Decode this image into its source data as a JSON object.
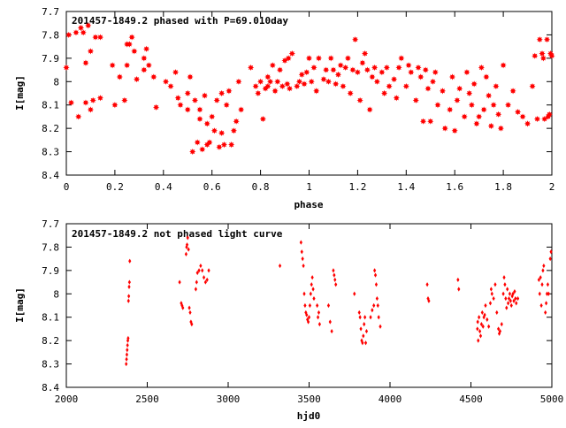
{
  "colors": {
    "points": "#ff0000",
    "axes": "#000000",
    "background": "#ffffff"
  },
  "chart_data": [
    {
      "type": "scatter",
      "title": "201457-1849.2 phased with P=69.010day",
      "xlabel": "phase",
      "ylabel": "I[mag]",
      "xlim": [
        0,
        2
      ],
      "ylim": [
        7.7,
        8.4
      ],
      "y_inverted": true,
      "grid": false,
      "legend": "none",
      "marker": "filled-star",
      "xticks": [
        "0",
        "0.2",
        "0.4",
        "0.6",
        "0.8",
        "1",
        "1.2",
        "1.4",
        "1.6",
        "1.8",
        "2"
      ],
      "yticks": [
        "7.7",
        "7.8",
        "7.9",
        "8",
        "8.1",
        "8.2",
        "8.3",
        "8.4"
      ],
      "points": [
        [
          0.0,
          7.94
        ],
        [
          0.01,
          7.8
        ],
        [
          0.02,
          8.09
        ],
        [
          0.04,
          7.79
        ],
        [
          0.05,
          8.15
        ],
        [
          0.06,
          7.77
        ],
        [
          0.07,
          7.79
        ],
        [
          0.08,
          7.92
        ],
        [
          0.08,
          8.09
        ],
        [
          0.09,
          7.76
        ],
        [
          0.1,
          7.87
        ],
        [
          0.1,
          8.12
        ],
        [
          0.11,
          8.08
        ],
        [
          0.12,
          7.81
        ],
        [
          0.14,
          7.81
        ],
        [
          0.14,
          8.07
        ],
        [
          0.19,
          7.93
        ],
        [
          0.2,
          8.1
        ],
        [
          0.22,
          7.98
        ],
        [
          0.24,
          8.08
        ],
        [
          0.25,
          7.84
        ],
        [
          0.25,
          7.93
        ],
        [
          0.26,
          7.84
        ],
        [
          0.27,
          7.81
        ],
        [
          0.28,
          7.87
        ],
        [
          0.29,
          7.99
        ],
        [
          0.32,
          7.95
        ],
        [
          0.32,
          7.9
        ],
        [
          0.33,
          7.86
        ],
        [
          0.34,
          7.93
        ],
        [
          0.36,
          7.98
        ],
        [
          0.37,
          8.11
        ],
        [
          0.41,
          8.0
        ],
        [
          0.43,
          8.02
        ],
        [
          0.45,
          7.96
        ],
        [
          0.46,
          8.07
        ],
        [
          0.47,
          8.1
        ],
        [
          0.5,
          8.05
        ],
        [
          0.5,
          8.12
        ],
        [
          0.51,
          7.98
        ],
        [
          0.52,
          8.3
        ],
        [
          0.53,
          8.08
        ],
        [
          0.54,
          8.26
        ],
        [
          0.55,
          8.12
        ],
        [
          0.55,
          8.16
        ],
        [
          0.56,
          8.29
        ],
        [
          0.57,
          8.06
        ],
        [
          0.58,
          8.27
        ],
        [
          0.58,
          8.18
        ],
        [
          0.59,
          8.26
        ],
        [
          0.6,
          8.15
        ],
        [
          0.61,
          8.21
        ],
        [
          0.62,
          8.08
        ],
        [
          0.63,
          8.28
        ],
        [
          0.64,
          8.05
        ],
        [
          0.64,
          8.22
        ],
        [
          0.65,
          8.27
        ],
        [
          0.66,
          8.1
        ],
        [
          0.67,
          8.04
        ],
        [
          0.68,
          8.27
        ],
        [
          0.69,
          8.21
        ],
        [
          0.7,
          8.17
        ],
        [
          0.71,
          8.0
        ],
        [
          0.72,
          8.12
        ],
        [
          0.76,
          7.94
        ],
        [
          0.78,
          8.02
        ],
        [
          0.79,
          8.05
        ],
        [
          0.8,
          8.0
        ],
        [
          0.81,
          8.16
        ],
        [
          0.82,
          8.03
        ],
        [
          0.83,
          7.98
        ],
        [
          0.83,
          8.02
        ],
        [
          0.84,
          8.0
        ],
        [
          0.85,
          7.93
        ],
        [
          0.86,
          8.04
        ],
        [
          0.87,
          8.0
        ],
        [
          0.88,
          7.95
        ],
        [
          0.89,
          8.02
        ],
        [
          0.9,
          7.91
        ],
        [
          0.91,
          8.01
        ],
        [
          0.92,
          8.03
        ],
        [
          0.93,
          7.88
        ],
        [
          0.95,
          8.02
        ],
        [
          0.96,
          8.0
        ],
        [
          0.97,
          7.97
        ],
        [
          0.98,
          8.01
        ],
        [
          0.99,
          7.96
        ],
        [
          1.0,
          7.9
        ],
        [
          1.01,
          8.0
        ],
        [
          1.02,
          7.94
        ],
        [
          1.03,
          8.04
        ],
        [
          1.04,
          7.9
        ],
        [
          1.06,
          7.99
        ],
        [
          1.07,
          7.95
        ],
        [
          1.08,
          8.0
        ],
        [
          1.09,
          7.9
        ],
        [
          1.1,
          7.95
        ],
        [
          1.11,
          8.01
        ],
        [
          1.12,
          7.97
        ],
        [
          1.13,
          7.93
        ],
        [
          1.14,
          8.02
        ],
        [
          1.15,
          7.94
        ],
        [
          1.16,
          7.9
        ],
        [
          1.17,
          8.05
        ],
        [
          1.18,
          7.95
        ],
        [
          1.19,
          7.82
        ],
        [
          1.2,
          7.96
        ],
        [
          1.21,
          8.08
        ],
        [
          1.22,
          7.92
        ],
        [
          1.23,
          7.88
        ],
        [
          1.24,
          7.95
        ],
        [
          1.25,
          8.12
        ],
        [
          1.26,
          7.98
        ],
        [
          1.27,
          7.94
        ],
        [
          1.28,
          8.0
        ],
        [
          1.3,
          7.96
        ],
        [
          1.31,
          8.05
        ],
        [
          1.32,
          7.94
        ],
        [
          1.33,
          8.02
        ],
        [
          1.35,
          7.99
        ],
        [
          1.36,
          8.07
        ],
        [
          1.37,
          7.94
        ],
        [
          1.38,
          7.9
        ],
        [
          1.4,
          8.02
        ],
        [
          1.41,
          7.93
        ],
        [
          1.42,
          7.96
        ],
        [
          1.44,
          8.08
        ],
        [
          1.45,
          7.94
        ],
        [
          1.46,
          7.98
        ],
        [
          1.47,
          8.17
        ],
        [
          1.48,
          7.95
        ],
        [
          1.49,
          8.03
        ],
        [
          1.5,
          8.17
        ],
        [
          1.51,
          8.0
        ],
        [
          1.52,
          7.96
        ],
        [
          1.53,
          8.1
        ],
        [
          1.55,
          8.04
        ],
        [
          1.56,
          8.2
        ],
        [
          1.58,
          8.12
        ],
        [
          1.59,
          7.98
        ],
        [
          1.6,
          8.21
        ],
        [
          1.61,
          8.08
        ],
        [
          1.62,
          8.03
        ],
        [
          1.64,
          8.15
        ],
        [
          1.65,
          7.96
        ],
        [
          1.66,
          8.05
        ],
        [
          1.67,
          8.1
        ],
        [
          1.68,
          8.01
        ],
        [
          1.69,
          8.18
        ],
        [
          1.7,
          8.15
        ],
        [
          1.71,
          7.94
        ],
        [
          1.72,
          8.12
        ],
        [
          1.73,
          7.98
        ],
        [
          1.74,
          8.06
        ],
        [
          1.75,
          8.19
        ],
        [
          1.76,
          8.1
        ],
        [
          1.77,
          8.02
        ],
        [
          1.78,
          8.14
        ],
        [
          1.79,
          8.2
        ],
        [
          1.8,
          7.93
        ],
        [
          1.82,
          8.1
        ],
        [
          1.84,
          8.04
        ],
        [
          1.86,
          8.13
        ],
        [
          1.88,
          8.15
        ],
        [
          1.9,
          8.18
        ],
        [
          1.92,
          8.02
        ],
        [
          1.93,
          7.89
        ],
        [
          1.94,
          8.16
        ],
        [
          1.95,
          7.82
        ],
        [
          1.96,
          7.88
        ],
        [
          1.97,
          8.16
        ],
        [
          1.98,
          7.82
        ],
        [
          1.99,
          8.14
        ],
        [
          2.0,
          7.89
        ],
        [
          1.965,
          7.9
        ],
        [
          1.985,
          8.15
        ],
        [
          1.995,
          7.88
        ],
        [
          0.915,
          7.9
        ]
      ]
    },
    {
      "type": "scatter",
      "title": "201457-1849.2 not phased light curve",
      "xlabel": "hjd0",
      "ylabel": "I[mag]",
      "xlim": [
        2000,
        5000
      ],
      "ylim": [
        7.7,
        8.4
      ],
      "y_inverted": true,
      "grid": false,
      "legend": "none",
      "marker": "small-diamond",
      "xticks": [
        "2000",
        "2500",
        "3000",
        "3500",
        "4000",
        "4500",
        "5000"
      ],
      "yticks": [
        "7.7",
        "7.8",
        "7.9",
        "8",
        "8.1",
        "8.2",
        "8.3",
        "8.4"
      ],
      "points": [
        [
          2370,
          8.3
        ],
        [
          2372,
          8.28
        ],
        [
          2374,
          8.26
        ],
        [
          2376,
          8.24
        ],
        [
          2378,
          8.22
        ],
        [
          2380,
          8.2
        ],
        [
          2382,
          8.19
        ],
        [
          2384,
          8.03
        ],
        [
          2386,
          8.01
        ],
        [
          2388,
          7.97
        ],
        [
          2390,
          7.95
        ],
        [
          2392,
          7.86
        ],
        [
          2700,
          7.95
        ],
        [
          2710,
          8.04
        ],
        [
          2715,
          8.05
        ],
        [
          2720,
          8.06
        ],
        [
          2740,
          7.83
        ],
        [
          2743,
          7.8
        ],
        [
          2746,
          7.79
        ],
        [
          2750,
          7.76
        ],
        [
          2755,
          7.81
        ],
        [
          2760,
          8.06
        ],
        [
          2765,
          8.08
        ],
        [
          2770,
          8.12
        ],
        [
          2775,
          8.13
        ],
        [
          2800,
          7.98
        ],
        [
          2805,
          7.95
        ],
        [
          2810,
          7.91
        ],
        [
          2820,
          7.9
        ],
        [
          2830,
          7.88
        ],
        [
          2840,
          7.9
        ],
        [
          2850,
          7.93
        ],
        [
          2860,
          7.95
        ],
        [
          2870,
          7.94
        ],
        [
          2880,
          7.9
        ],
        [
          3320,
          7.88
        ],
        [
          3450,
          7.78
        ],
        [
          3455,
          7.82
        ],
        [
          3460,
          7.85
        ],
        [
          3465,
          7.88
        ],
        [
          3470,
          8.0
        ],
        [
          3475,
          8.05
        ],
        [
          3480,
          8.08
        ],
        [
          3485,
          8.09
        ],
        [
          3490,
          8.11
        ],
        [
          3495,
          8.12
        ],
        [
          3500,
          8.1
        ],
        [
          3505,
          8.05
        ],
        [
          3510,
          8.0
        ],
        [
          3515,
          7.96
        ],
        [
          3520,
          7.93
        ],
        [
          3525,
          7.98
        ],
        [
          3530,
          8.02
        ],
        [
          3550,
          8.05
        ],
        [
          3555,
          8.1
        ],
        [
          3560,
          8.08
        ],
        [
          3565,
          8.13
        ],
        [
          3620,
          8.05
        ],
        [
          3630,
          8.12
        ],
        [
          3640,
          8.16
        ],
        [
          3650,
          7.9
        ],
        [
          3655,
          7.92
        ],
        [
          3660,
          7.94
        ],
        [
          3665,
          7.96
        ],
        [
          3780,
          8.0
        ],
        [
          3810,
          8.08
        ],
        [
          3815,
          8.1
        ],
        [
          3820,
          8.15
        ],
        [
          3825,
          8.2
        ],
        [
          3830,
          8.21
        ],
        [
          3835,
          8.18
        ],
        [
          3840,
          8.13
        ],
        [
          3845,
          8.1
        ],
        [
          3850,
          8.21
        ],
        [
          3855,
          8.16
        ],
        [
          3880,
          8.1
        ],
        [
          3890,
          8.07
        ],
        [
          3900,
          8.05
        ],
        [
          3905,
          7.9
        ],
        [
          3910,
          7.92
        ],
        [
          3915,
          7.96
        ],
        [
          3920,
          8.02
        ],
        [
          3925,
          8.05
        ],
        [
          3930,
          8.1
        ],
        [
          3940,
          8.14
        ],
        [
          4230,
          7.96
        ],
        [
          4235,
          8.02
        ],
        [
          4240,
          8.03
        ],
        [
          4420,
          7.94
        ],
        [
          4425,
          7.98
        ],
        [
          4540,
          8.15
        ],
        [
          4542,
          8.12
        ],
        [
          4545,
          8.2
        ],
        [
          4550,
          8.1
        ],
        [
          4555,
          8.16
        ],
        [
          4560,
          8.18
        ],
        [
          4565,
          8.13
        ],
        [
          4570,
          8.08
        ],
        [
          4575,
          8.14
        ],
        [
          4580,
          8.1
        ],
        [
          4585,
          8.09
        ],
        [
          4590,
          8.05
        ],
        [
          4600,
          8.11
        ],
        [
          4610,
          8.14
        ],
        [
          4620,
          8.04
        ],
        [
          4625,
          7.98
        ],
        [
          4630,
          8.0
        ],
        [
          4640,
          8.02
        ],
        [
          4650,
          7.96
        ],
        [
          4660,
          8.08
        ],
        [
          4670,
          8.15
        ],
        [
          4675,
          8.17
        ],
        [
          4680,
          8.16
        ],
        [
          4690,
          8.13
        ],
        [
          4700,
          8.0
        ],
        [
          4705,
          7.93
        ],
        [
          4710,
          7.96
        ],
        [
          4715,
          8.02
        ],
        [
          4720,
          8.06
        ],
        [
          4725,
          7.98
        ],
        [
          4730,
          8.04
        ],
        [
          4735,
          8.02
        ],
        [
          4740,
          8.0
        ],
        [
          4745,
          8.03
        ],
        [
          4750,
          8.05
        ],
        [
          4755,
          8.01
        ],
        [
          4760,
          8.0
        ],
        [
          4765,
          8.03
        ],
        [
          4770,
          7.99
        ],
        [
          4775,
          8.02
        ],
        [
          4780,
          8.04
        ],
        [
          4790,
          8.02
        ],
        [
          4920,
          7.94
        ],
        [
          4925,
          8.0
        ],
        [
          4930,
          7.93
        ],
        [
          4935,
          8.05
        ],
        [
          4940,
          7.96
        ],
        [
          4945,
          7.9
        ],
        [
          4950,
          7.88
        ],
        [
          4960,
          8.08
        ],
        [
          4965,
          8.04
        ],
        [
          4970,
          8.0
        ],
        [
          4975,
          7.96
        ],
        [
          4980,
          8.0
        ],
        [
          4990,
          7.85
        ],
        [
          4995,
          7.82
        ]
      ]
    }
  ]
}
